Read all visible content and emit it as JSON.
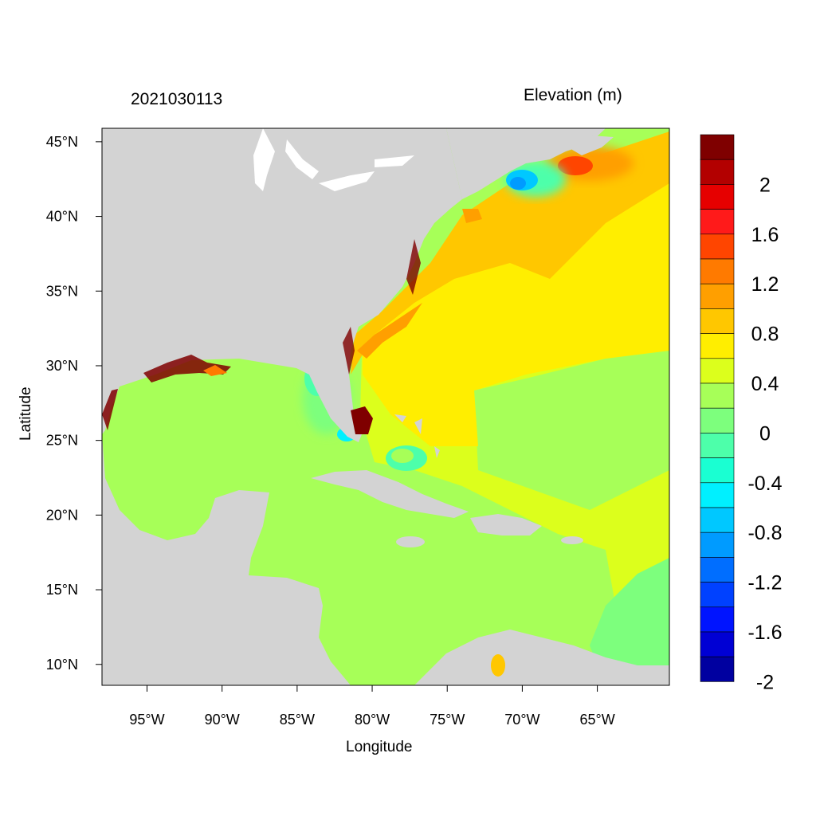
{
  "header": {
    "timestamp": "2021030113",
    "variable": "Elevation (m)"
  },
  "axes": {
    "xlabel": "Longitude",
    "ylabel": "Latitude",
    "x_ticks": [
      {
        "value": -95,
        "label": "95°W"
      },
      {
        "value": -90,
        "label": "90°W"
      },
      {
        "value": -85,
        "label": "85°W"
      },
      {
        "value": -80,
        "label": "80°W"
      },
      {
        "value": -75,
        "label": "75°W"
      },
      {
        "value": -70,
        "label": "70°W"
      },
      {
        "value": -65,
        "label": "65°W"
      }
    ],
    "y_ticks": [
      {
        "value": 45,
        "label": "45°N"
      },
      {
        "value": 40,
        "label": "40°N"
      },
      {
        "value": 35,
        "label": "35°N"
      },
      {
        "value": 30,
        "label": "30°N"
      },
      {
        "value": 25,
        "label": "25°N"
      },
      {
        "value": 20,
        "label": "20°N"
      },
      {
        "value": 15,
        "label": "15°N"
      },
      {
        "value": 10,
        "label": "10°N"
      }
    ],
    "lon_range": [
      -98,
      -60.2
    ],
    "lat_range": [
      8.6,
      45.9
    ]
  },
  "colorbar": {
    "colors": [
      "#7f0000",
      "#b30000",
      "#e60000",
      "#ff1a1a",
      "#ff4500",
      "#ff7a00",
      "#ff9f00",
      "#ffc700",
      "#ffee00",
      "#dcff1c",
      "#a7ff58",
      "#7dff7d",
      "#4dffaa",
      "#1affd2",
      "#00f0ff",
      "#00c8ff",
      "#009bff",
      "#006eff",
      "#0041ff",
      "#0014ff",
      "#0000d4",
      "#0000a0"
    ],
    "labels": [
      {
        "boundary": 2,
        "label": "2"
      },
      {
        "boundary": 4,
        "label": "1.6"
      },
      {
        "boundary": 6,
        "label": "1.2"
      },
      {
        "boundary": 8,
        "label": "0.8"
      },
      {
        "boundary": 10,
        "label": "0.4"
      },
      {
        "boundary": 12,
        "label": "0"
      },
      {
        "boundary": 14,
        "label": "-0.4"
      },
      {
        "boundary": 16,
        "label": "-0.8"
      },
      {
        "boundary": 18,
        "label": "-1.2"
      },
      {
        "boundary": 20,
        "label": "-1.6"
      },
      {
        "boundary": 22,
        "label": "-2"
      }
    ]
  },
  "palette": {
    "land": "#d3d3d3",
    "lake": "#ffffff",
    "frame": "#000000"
  }
}
